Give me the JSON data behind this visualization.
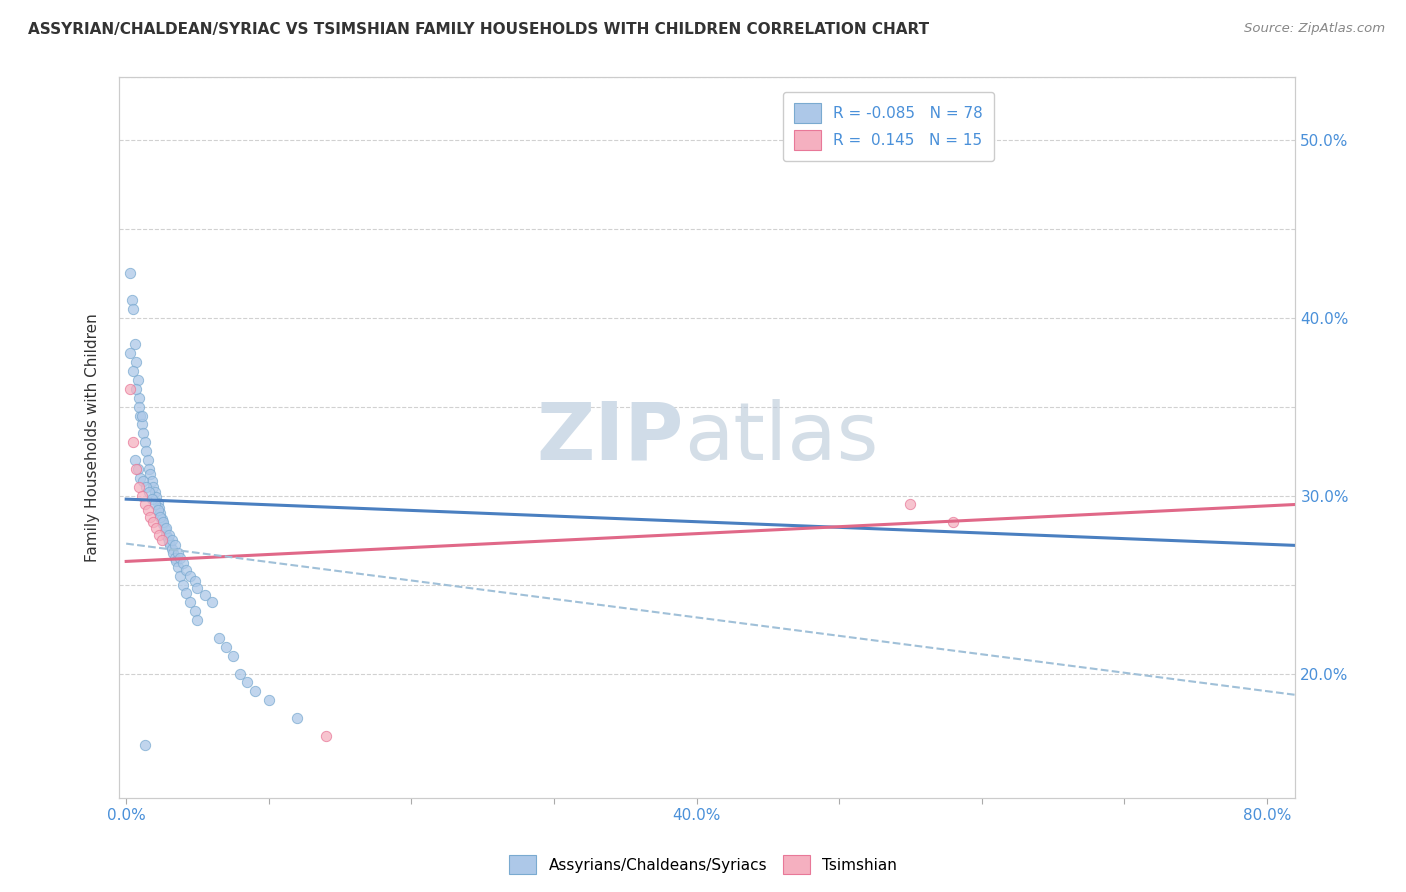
{
  "title": "ASSYRIAN/CHALDEAN/SYRIAC VS TSIMSHIAN FAMILY HOUSEHOLDS WITH CHILDREN CORRELATION CHART",
  "source": "Source: ZipAtlas.com",
  "ylabel": "Family Households with Children",
  "xlim": [
    -0.005,
    0.82
  ],
  "ylim": [
    0.13,
    0.535
  ],
  "blue_color": "#adc8e8",
  "pink_color": "#f5b0c0",
  "blue_edge_color": "#7aaad0",
  "pink_edge_color": "#e87898",
  "blue_line_color": "#4a7fc0",
  "pink_line_color": "#e06888",
  "dashed_line_color": "#a0c0d8",
  "watermark_color": "#d0dce8",
  "legend_R_blue": "-0.085",
  "legend_N_blue": "78",
  "legend_R_pink": "0.145",
  "legend_N_pink": "15",
  "blue_scatter_x": [
    0.003,
    0.004,
    0.005,
    0.006,
    0.007,
    0.008,
    0.009,
    0.01,
    0.011,
    0.012,
    0.013,
    0.014,
    0.015,
    0.016,
    0.017,
    0.018,
    0.019,
    0.02,
    0.021,
    0.022,
    0.023,
    0.024,
    0.025,
    0.026,
    0.027,
    0.028,
    0.029,
    0.03,
    0.031,
    0.032,
    0.033,
    0.034,
    0.035,
    0.036,
    0.038,
    0.04,
    0.042,
    0.045,
    0.048,
    0.05,
    0.006,
    0.008,
    0.01,
    0.012,
    0.014,
    0.016,
    0.018,
    0.02,
    0.022,
    0.024,
    0.026,
    0.028,
    0.03,
    0.032,
    0.034,
    0.036,
    0.038,
    0.04,
    0.042,
    0.045,
    0.048,
    0.05,
    0.055,
    0.06,
    0.065,
    0.07,
    0.075,
    0.08,
    0.085,
    0.09,
    0.1,
    0.12,
    0.003,
    0.005,
    0.007,
    0.009,
    0.011,
    0.013
  ],
  "blue_scatter_y": [
    0.425,
    0.41,
    0.405,
    0.385,
    0.375,
    0.365,
    0.355,
    0.345,
    0.34,
    0.335,
    0.33,
    0.325,
    0.32,
    0.315,
    0.312,
    0.308,
    0.305,
    0.302,
    0.299,
    0.296,
    0.293,
    0.29,
    0.287,
    0.284,
    0.281,
    0.278,
    0.276,
    0.274,
    0.272,
    0.27,
    0.268,
    0.265,
    0.263,
    0.26,
    0.255,
    0.25,
    0.245,
    0.24,
    0.235,
    0.23,
    0.32,
    0.315,
    0.31,
    0.308,
    0.305,
    0.302,
    0.298,
    0.295,
    0.292,
    0.288,
    0.285,
    0.282,
    0.278,
    0.275,
    0.272,
    0.268,
    0.265,
    0.262,
    0.258,
    0.255,
    0.252,
    0.248,
    0.244,
    0.24,
    0.22,
    0.215,
    0.21,
    0.2,
    0.195,
    0.19,
    0.185,
    0.175,
    0.38,
    0.37,
    0.36,
    0.35,
    0.345,
    0.16
  ],
  "pink_scatter_x": [
    0.003,
    0.005,
    0.007,
    0.009,
    0.011,
    0.013,
    0.015,
    0.017,
    0.019,
    0.021,
    0.023,
    0.025,
    0.55,
    0.58,
    0.14
  ],
  "pink_scatter_y": [
    0.36,
    0.33,
    0.315,
    0.305,
    0.3,
    0.295,
    0.292,
    0.288,
    0.285,
    0.282,
    0.278,
    0.275,
    0.295,
    0.285,
    0.165
  ],
  "blue_trend_x": [
    0.0,
    0.82
  ],
  "blue_trend_y": [
    0.298,
    0.272
  ],
  "pink_trend_x": [
    0.0,
    0.82
  ],
  "pink_trend_y": [
    0.263,
    0.295
  ],
  "dashed_trend_x": [
    0.0,
    0.82
  ],
  "dashed_trend_y": [
    0.273,
    0.188
  ],
  "x_tick_positions": [
    0.0,
    0.1,
    0.2,
    0.3,
    0.4,
    0.5,
    0.6,
    0.7,
    0.8
  ],
  "x_tick_labels": [
    "0.0%",
    "",
    "",
    "",
    "40.0%",
    "",
    "",
    "",
    "80.0%"
  ],
  "y_tick_positions": [
    0.2,
    0.25,
    0.3,
    0.35,
    0.4,
    0.45,
    0.5
  ],
  "y_tick_labels": [
    "20.0%",
    "",
    "30.0%",
    "",
    "40.0%",
    "",
    "50.0%"
  ]
}
